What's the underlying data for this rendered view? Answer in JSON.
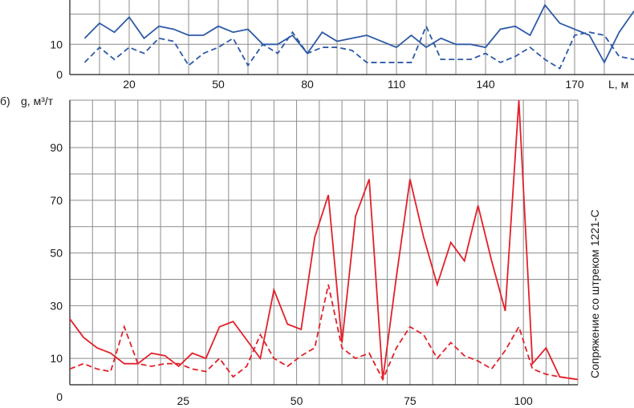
{
  "colors": {
    "top": "#2e5aa8",
    "bottom": "#e3202a",
    "grid": "#8c8c8c"
  },
  "chart_data": [
    {
      "type": "line",
      "panel_label": "",
      "xlabel": "L, м",
      "ylabel": "",
      "x_ticks": [
        "20",
        "50",
        "80",
        "110",
        "140",
        "170"
      ],
      "y_ticks": [
        "0",
        "10"
      ],
      "xlim": [
        0,
        190
      ],
      "ylim": [
        0,
        26
      ],
      "grid": true,
      "series": [
        {
          "style": "solid",
          "x": [
            5,
            10,
            15,
            20,
            25,
            30,
            35,
            40,
            45,
            50,
            55,
            60,
            65,
            70,
            75,
            80,
            85,
            90,
            95,
            100,
            105,
            110,
            115,
            120,
            125,
            130,
            135,
            140,
            145,
            150,
            155,
            160,
            165,
            170,
            175,
            180,
            185,
            190
          ],
          "y": [
            12,
            17,
            14,
            19,
            12,
            16,
            15,
            13,
            13,
            16,
            14,
            15,
            10,
            10,
            13,
            7,
            14,
            11,
            12,
            13,
            11,
            9,
            13,
            9,
            12,
            10,
            10,
            9,
            15,
            16,
            13,
            23,
            17,
            15,
            13,
            4,
            14,
            21
          ]
        },
        {
          "style": "dashed",
          "x": [
            5,
            10,
            15,
            20,
            25,
            30,
            35,
            40,
            45,
            50,
            55,
            60,
            65,
            70,
            75,
            80,
            85,
            90,
            95,
            100,
            105,
            110,
            115,
            120,
            125,
            130,
            135,
            140,
            145,
            150,
            155,
            160,
            165,
            170,
            175,
            180,
            185,
            190
          ],
          "y": [
            4,
            9,
            5,
            9,
            7,
            12,
            11,
            3,
            7,
            9,
            12,
            3,
            10,
            7,
            14,
            7,
            9,
            9,
            8,
            4,
            4,
            4,
            4,
            16,
            5,
            5,
            5,
            7,
            4,
            6,
            9,
            5,
            2,
            13,
            14,
            13,
            6,
            5
          ]
        }
      ]
    },
    {
      "type": "line",
      "panel_label": "б)",
      "ylabel": "g, м³/т",
      "xlabel": "",
      "right_annotation": "Сопряжение со штреком 1221-С",
      "x_ticks": [
        "25",
        "50",
        "75",
        "100"
      ],
      "y_ticks": [
        "0",
        "10",
        "30",
        "50",
        "70",
        "90"
      ],
      "xlim": [
        0,
        112
      ],
      "ylim": [
        0,
        108
      ],
      "grid": true,
      "series": [
        {
          "style": "solid",
          "x": [
            0,
            3,
            6,
            9,
            12,
            15,
            18,
            21,
            24,
            27,
            30,
            33,
            36,
            39,
            42,
            45,
            48,
            51,
            54,
            57,
            60,
            63,
            66,
            69,
            72,
            75,
            78,
            81,
            84,
            87,
            90,
            93,
            96,
            99,
            102,
            105,
            108,
            112
          ],
          "y": [
            25,
            18,
            14,
            12,
            8,
            8,
            12,
            11,
            7,
            12,
            10,
            22,
            24,
            17,
            10,
            36,
            23,
            21,
            56,
            72,
            16,
            64,
            78,
            2,
            41,
            78,
            56,
            38,
            54,
            47,
            68,
            47,
            28,
            108,
            8,
            14,
            3,
            2
          ]
        },
        {
          "style": "dashed",
          "x": [
            0,
            3,
            6,
            9,
            12,
            15,
            18,
            21,
            24,
            27,
            30,
            33,
            36,
            39,
            42,
            45,
            48,
            51,
            54,
            57,
            60,
            63,
            66,
            69,
            72,
            75,
            78,
            81,
            84,
            87,
            90,
            93,
            96,
            99,
            102,
            105,
            108,
            112
          ],
          "y": [
            6,
            8,
            6,
            5,
            22,
            8,
            7,
            8,
            8,
            6,
            5,
            10,
            3,
            7,
            19,
            10,
            7,
            11,
            14,
            38,
            14,
            10,
            12,
            2,
            14,
            22,
            19,
            10,
            16,
            11,
            9,
            6,
            13,
            22,
            6,
            4,
            3,
            2
          ]
        }
      ]
    }
  ]
}
